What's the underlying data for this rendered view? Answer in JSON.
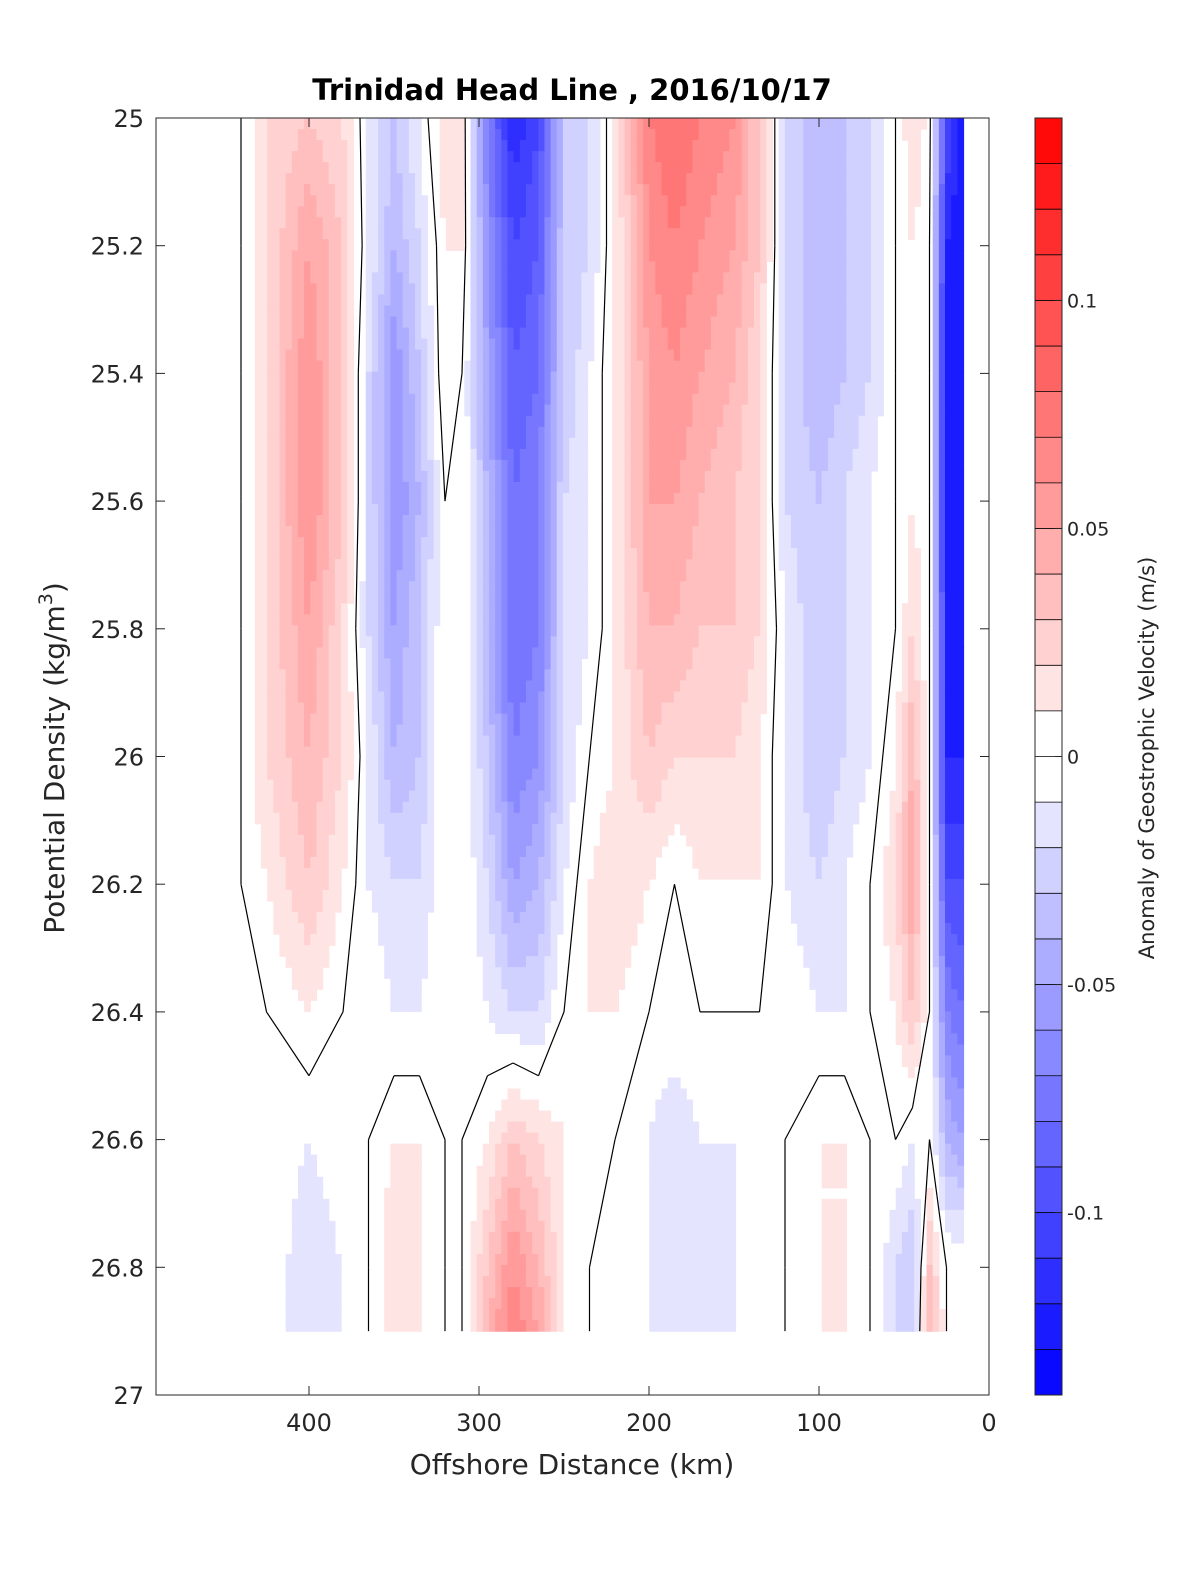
{
  "chart_data": {
    "type": "heatmap",
    "title": "Trinidad Head Line , 2016/10/17",
    "xlabel": "Offshore Distance (km)",
    "ylabel": "Potential Density (kg/m",
    "ylabel_sup": "3",
    "ylabel_close": ")",
    "colorbar_label": "Anomaly of Geostrophic Velocity (m/s)",
    "xlim": [
      490,
      0
    ],
    "ylim": [
      25,
      27
    ],
    "x_reversed": true,
    "y_reversed": true,
    "x_ticks": [
      400,
      300,
      200,
      100,
      0
    ],
    "x_tick_labels": [
      "400",
      "300",
      "200",
      "100",
      "0"
    ],
    "y_ticks": [
      25,
      25.2,
      25.4,
      25.6,
      25.8,
      26,
      26.2,
      26.4,
      26.6,
      26.8,
      27
    ],
    "y_tick_labels": [
      "25",
      "25.2",
      "25.4",
      "25.6",
      "25.8",
      "26",
      "26.2",
      "26.4",
      "26.6",
      "26.8",
      "27"
    ],
    "colorbar_range": [
      -0.14,
      0.14
    ],
    "colorbar_ticks": [
      0.1,
      0.05,
      0,
      -0.05,
      -0.1
    ],
    "colorbar_tick_labels": [
      "0.1",
      "0.05",
      "0",
      "-0.05",
      "-0.1"
    ],
    "colorbar_levels": 28,
    "colormap": {
      "negative": "#0000ff",
      "zero": "#ffffff",
      "positive": "#ff0000"
    },
    "zero_contour_color": "#000000",
    "data_x": [
      450,
      440,
      425,
      400,
      380,
      365,
      350,
      335,
      320,
      310,
      295,
      280,
      265,
      250,
      235,
      220,
      200,
      185,
      170,
      150,
      135,
      120,
      100,
      85,
      70,
      55,
      45,
      35,
      25,
      15
    ],
    "data_y": [
      25,
      25.2,
      25.4,
      25.6,
      25.8,
      26,
      26.2,
      26.4,
      26.6,
      26.8,
      26.9
    ],
    "velocity_anomaly": [
      [
        0,
        0,
        0.02,
        0.03,
        0.02,
        -0.01,
        -0.03,
        -0.01,
        0.02,
        0.01,
        -0.07,
        -0.12,
        -0.1,
        -0.03,
        -0.02,
        0.01,
        0.07,
        0.08,
        0.07,
        0.06,
        0.03,
        -0.02,
        -0.04,
        -0.03,
        -0.02,
        0,
        0.02,
        0.005,
        -0.1,
        -0.13
      ],
      [
        0,
        0,
        0.02,
        0.05,
        0.03,
        -0.01,
        -0.04,
        -0.02,
        0.01,
        0.01,
        -0.06,
        -0.1,
        -0.09,
        -0.03,
        -0.02,
        0.01,
        0.06,
        0.07,
        0.06,
        0.05,
        0.03,
        -0.02,
        -0.04,
        -0.03,
        -0.02,
        0,
        0.01,
        0,
        -0.12,
        -0.13
      ],
      [
        0,
        0,
        0.02,
        0.06,
        0.03,
        -0.02,
        -0.06,
        -0.03,
        0.01,
        0,
        -0.05,
        -0.09,
        -0.08,
        -0.03,
        -0.01,
        0.01,
        0.05,
        0.06,
        0.05,
        0.04,
        0.02,
        -0.02,
        -0.04,
        -0.03,
        -0.02,
        0,
        0.01,
        0,
        -0.13,
        -0.13
      ],
      [
        0,
        0,
        0.02,
        0.06,
        0.03,
        -0.02,
        -0.06,
        -0.04,
        0,
        0,
        -0.04,
        -0.08,
        -0.07,
        -0.02,
        -0.01,
        0.01,
        0.05,
        0.05,
        0.04,
        0.03,
        0.02,
        -0.02,
        -0.03,
        -0.02,
        -0.01,
        0,
        0.01,
        0,
        -0.13,
        -0.13
      ],
      [
        0,
        0,
        0.02,
        0.05,
        0.02,
        -0.02,
        -0.05,
        -0.03,
        0,
        0,
        -0.04,
        -0.08,
        -0.07,
        -0.02,
        -0.01,
        0.01,
        0.04,
        0.04,
        0.03,
        0.03,
        0.02,
        -0.01,
        -0.03,
        -0.02,
        -0.01,
        0,
        0.02,
        0,
        -0.12,
        -0.13
      ],
      [
        0,
        0,
        0.02,
        0.04,
        0.02,
        -0.01,
        -0.04,
        -0.03,
        0,
        0,
        -0.03,
        -0.07,
        -0.06,
        -0.02,
        0,
        0.01,
        0.03,
        0.02,
        0.02,
        0.02,
        0.01,
        -0.01,
        -0.03,
        -0.02,
        -0.01,
        0.01,
        0.04,
        0,
        -0.12,
        -0.12
      ],
      [
        0,
        0,
        0.01,
        0.03,
        0.01,
        -0.01,
        -0.02,
        -0.02,
        0,
        0,
        -0.02,
        -0.05,
        -0.04,
        -0.01,
        0.01,
        0.02,
        0.01,
        0,
        0.01,
        0.01,
        0.01,
        -0.01,
        -0.02,
        -0.01,
        0,
        0.02,
        0.05,
        0,
        -0.1,
        -0.1
      ],
      [
        0,
        0,
        0,
        0.01,
        0,
        0,
        -0.01,
        -0.01,
        0,
        0,
        -0.01,
        -0.02,
        -0.02,
        0,
        0.01,
        0.01,
        0,
        0,
        0,
        0,
        0,
        0,
        -0.01,
        -0.01,
        0,
        0.01,
        0.03,
        0,
        -0.07,
        -0.08
      ],
      [
        0,
        0,
        0,
        -0.01,
        0,
        0,
        0.01,
        0.01,
        0,
        0,
        0.01,
        0.03,
        0.02,
        0.01,
        0.01,
        0,
        -0.01,
        -0.02,
        -0.01,
        -0.01,
        0,
        0,
        0.01,
        0.01,
        0,
        0,
        -0.01,
        0,
        -0.04,
        -0.05
      ],
      [
        0,
        0,
        0,
        -0.02,
        -0.01,
        0,
        0.02,
        0.01,
        0,
        0,
        0.03,
        0.06,
        0.04,
        0.01,
        0,
        0,
        -0.01,
        -0.02,
        -0.02,
        -0.01,
        0,
        0,
        0.01,
        0.01,
        0,
        -0.02,
        -0.03,
        0.03,
        0,
        0
      ],
      [
        0,
        0,
        0,
        -0.02,
        -0.01,
        0,
        0.02,
        0.01,
        0,
        0,
        0.04,
        0.07,
        0.05,
        0.01,
        0,
        0,
        -0.01,
        -0.02,
        -0.02,
        -0.01,
        0,
        0,
        0.01,
        0.01,
        0,
        -0.02,
        -0.03,
        0.04,
        0,
        0
      ]
    ]
  }
}
